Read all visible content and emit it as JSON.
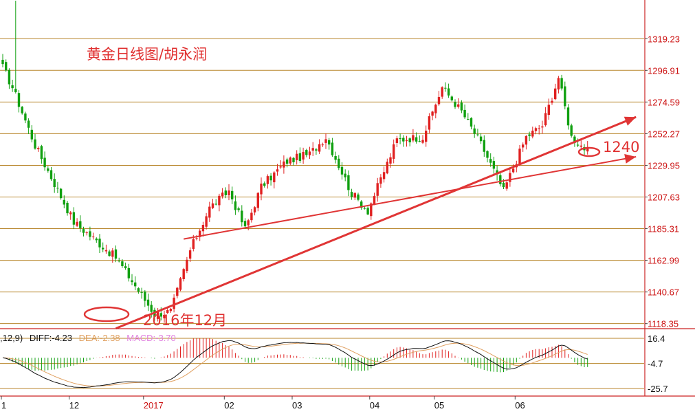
{
  "chart_data": {
    "type": "candlestick",
    "title": "黄金日线图/胡永润",
    "price_axis": {
      "ticks": [
        "1319.23",
        "1296.91",
        "1274.59",
        "1252.27",
        "1229.95",
        "1207.63",
        "1185.31",
        "1162.99",
        "1140.67",
        "1118.35"
      ],
      "range": [
        1114.8,
        1346.5
      ],
      "grid": true
    },
    "x_axis": {
      "ticks": [
        {
          "label": "1",
          "year": false
        },
        {
          "label": "12",
          "year": false
        },
        {
          "label": "2017",
          "year": true
        },
        {
          "label": "02",
          "year": false
        },
        {
          "label": "03",
          "year": false
        },
        {
          "label": "04",
          "year": false
        },
        {
          "label": "05",
          "year": false
        },
        {
          "label": "06",
          "year": false
        }
      ]
    },
    "series_keypoints": {
      "index": [
        0,
        3,
        10,
        22,
        35,
        47,
        52,
        58,
        64,
        70,
        75,
        80,
        88,
        95,
        100,
        108,
        113,
        122,
        130,
        136,
        142,
        148,
        155,
        162,
        167,
        172,
        176,
        181
      ],
      "close": [
        1299,
        1285,
        1244,
        1190,
        1165,
        1125,
        1127,
        1170,
        1200,
        1212,
        1185,
        1215,
        1233,
        1238,
        1250,
        1210,
        1198,
        1248,
        1250,
        1285,
        1268,
        1245,
        1212,
        1250,
        1258,
        1292,
        1250,
        1240
      ]
    },
    "trendlines": [
      {
        "from": {
          "index": 35,
          "price": 1115
        },
        "to": {
          "index": 196,
          "price": 1264
        }
      },
      {
        "from": {
          "index": 56,
          "price": 1178
        },
        "to": {
          "index": 196,
          "price": 1236
        }
      }
    ],
    "annotations": [
      {
        "text": "2016年12月",
        "index": 40,
        "price": 1120
      },
      {
        "text": "1240",
        "index": 185,
        "price": 1238
      }
    ],
    "macd": {
      "params_label": ",12,9)",
      "diff": {
        "label": "DIFF:",
        "value": "-4.23",
        "color": "#111111"
      },
      "dea": {
        "label": "DEA:",
        "value": "-2.38",
        "color": "#e0a060"
      },
      "macd": {
        "label": "MACD:",
        "value": "-3.70",
        "color": "#e080e0"
      },
      "ticks": [
        "16.4",
        "-4.7",
        "-25.7"
      ],
      "range": [
        -25.7,
        16.4
      ]
    }
  },
  "colors": {
    "up": "#e02020",
    "down": "#10a010",
    "grid": "#b8862c",
    "trend": "#e03535"
  }
}
